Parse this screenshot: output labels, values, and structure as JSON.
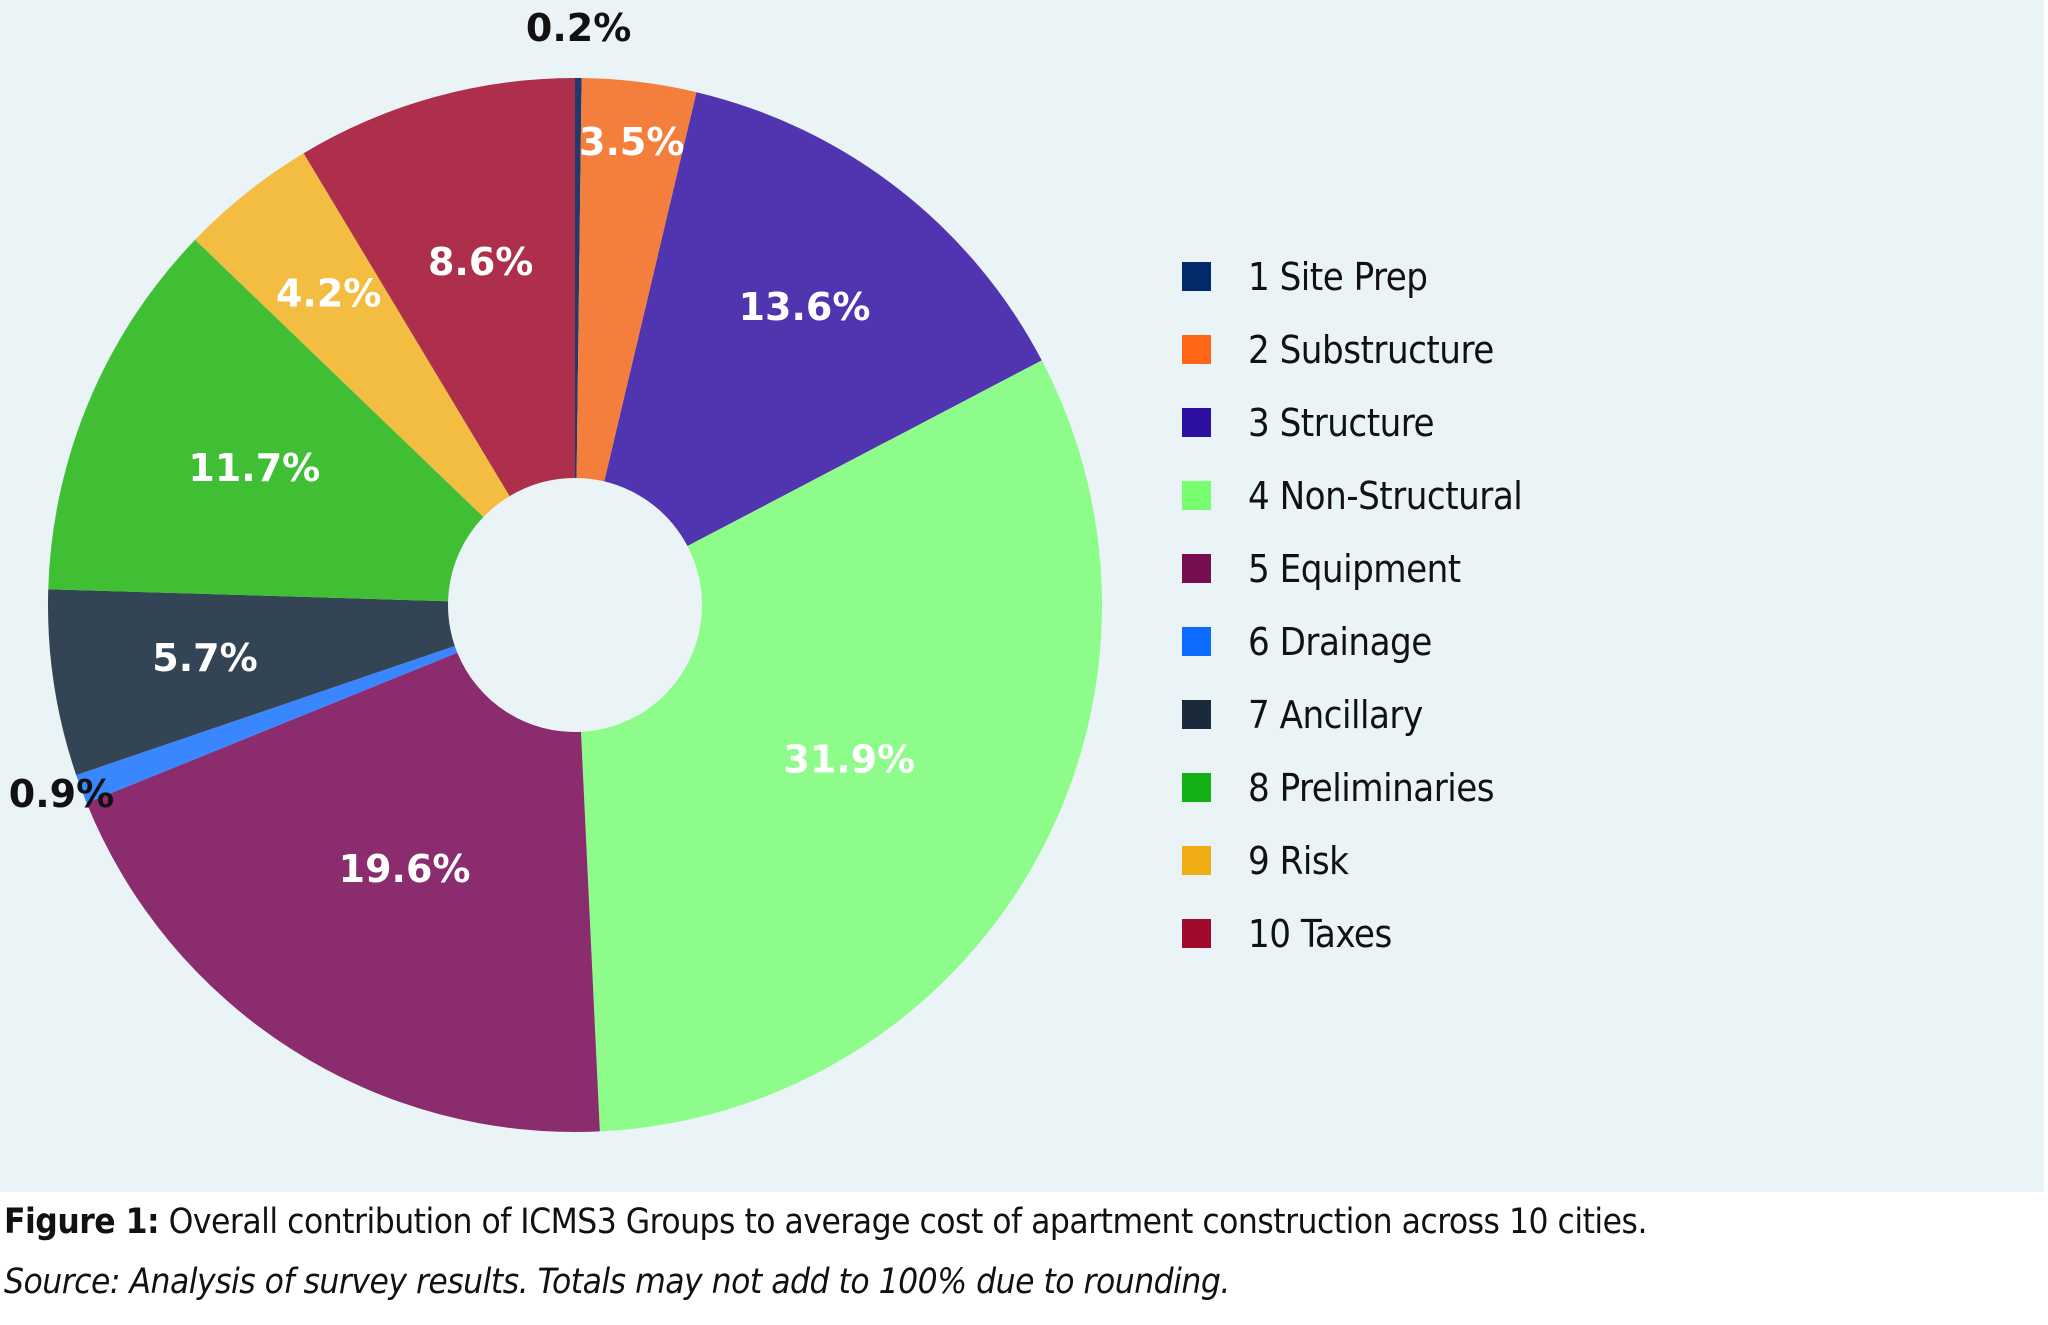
{
  "chart_data": {
    "type": "pie",
    "donut": true,
    "categories": [
      "1 Site Prep",
      "2 Substructure",
      "3 Structure",
      "4 Non-Structural",
      "5 Equipment",
      "6 Drainage",
      "7 Ancillary",
      "8 Preliminaries",
      "9 Risk",
      "10 Taxes"
    ],
    "values": [
      0.2,
      3.5,
      13.6,
      31.9,
      19.6,
      0.9,
      5.7,
      11.7,
      4.2,
      8.6
    ],
    "data_labels": [
      "0.2%",
      "3.5%",
      "13.6%",
      "31.9%",
      "19.6%",
      "0.9%",
      "5.7%",
      "11.7%",
      "4.2%",
      "8.6%"
    ],
    "slice_colors": [
      "#1e3a6e",
      "#f47f3c",
      "#5135b0",
      "#8efc8a",
      "#8b2c6e",
      "#3a86ff",
      "#334455",
      "#40bf35",
      "#f2bd40",
      "#ad2f4b"
    ],
    "legend_colors": [
      "#032b6b",
      "#ff6618",
      "#2c0fa0",
      "#77ff6f",
      "#770e50",
      "#0d6cff",
      "#1a2a3a",
      "#14b014",
      "#f0ad14",
      "#a10a2c"
    ],
    "legend_position": "right",
    "background": "#eaf3f5"
  },
  "caption": {
    "figure_label": "Figure 1:",
    "text": " Overall contribution of ICMS3 Groups to average cost of apartment construction across 10 cities.",
    "source": "Source: Analysis of survey results. Totals may not add to 100% due to rounding."
  }
}
